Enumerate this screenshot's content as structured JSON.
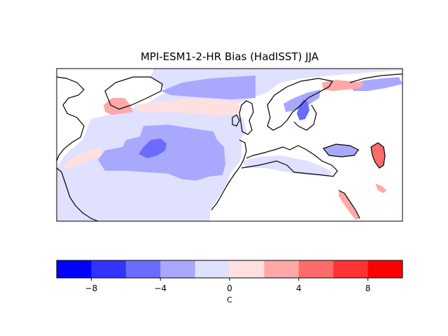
{
  "title": "MPI-ESM1-2-HR Bias (HadISST) JJA",
  "colorbar": {
    "units": "C",
    "range": [
      -10,
      10
    ],
    "bin_width": 2,
    "tick_labels": [
      "−8",
      "−4",
      "0",
      "4",
      "8"
    ],
    "tick_values": [
      -8,
      -4,
      0,
      4,
      8
    ],
    "colors": [
      "#0000ff",
      "#3333ff",
      "#6b6bff",
      "#a8a8ff",
      "#e0e0ff",
      "#ffe0e0",
      "#ffa8a8",
      "#ff6b6b",
      "#ff3333",
      "#ff0000"
    ]
  }
}
